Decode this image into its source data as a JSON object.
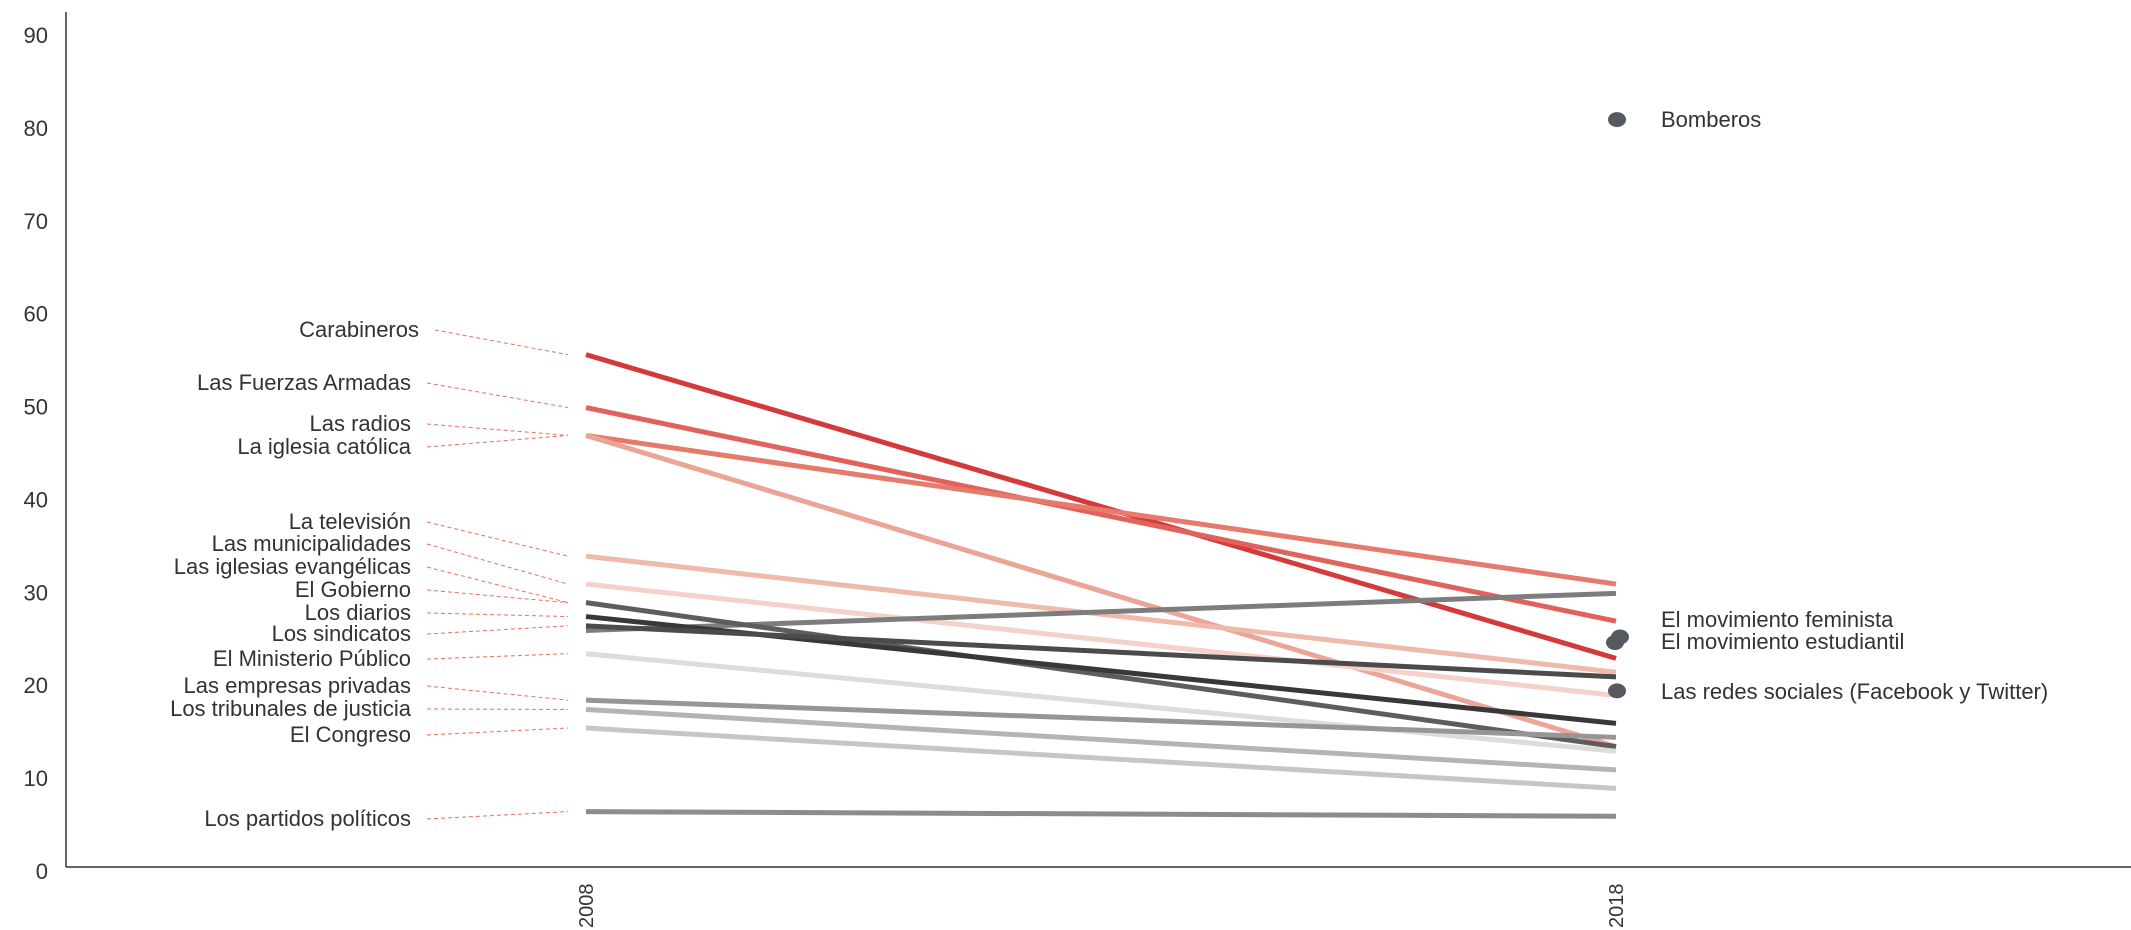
{
  "chart_data": {
    "type": "line",
    "x": [
      "2008",
      "2018"
    ],
    "ylim": [
      0,
      90
    ],
    "yticks": [
      0,
      10,
      20,
      30,
      40,
      50,
      60,
      70,
      80,
      90
    ],
    "grid": false,
    "leader_color": "#e8705e",
    "series": [
      {
        "name": "Carabineros",
        "values": [
          55.7,
          23.0
        ],
        "color": "#d43a3a"
      },
      {
        "name": "Las Fuerzas Armadas",
        "values": [
          50.0,
          27.0
        ],
        "color": "#e0625a"
      },
      {
        "name": "Las radios",
        "values": [
          47.0,
          31.0
        ],
        "color": "#e47b6b"
      },
      {
        "name": "La iglesia católica",
        "values": [
          47.0,
          13.5
        ],
        "color": "#eba596"
      },
      {
        "name": "La televisión",
        "values": [
          34.0,
          21.5
        ],
        "color": "#efb9ac"
      },
      {
        "name": "Las municipalidades",
        "values": [
          31.0,
          19.0
        ],
        "color": "#f5d1c9"
      },
      {
        "name": "Las iglesias evangélicas",
        "values": [
          26.0,
          30.0
        ],
        "color": "#7d7d7d"
      },
      {
        "name": "El Gobierno",
        "values": [
          29.0,
          13.5
        ],
        "color": "#5d5d5d"
      },
      {
        "name": "Los diarios",
        "values": [
          27.5,
          16.0
        ],
        "color": "#383838"
      },
      {
        "name": "Los sindicatos",
        "values": [
          26.5,
          21.0
        ],
        "color": "#4b4b4b"
      },
      {
        "name": "El Ministerio Público",
        "values": [
          23.5,
          13.0
        ],
        "color": "#dcdcdc"
      },
      {
        "name": "Las empresas privadas",
        "values": [
          18.5,
          14.5
        ],
        "color": "#969696"
      },
      {
        "name": "Los tribunales de justicia",
        "values": [
          17.5,
          11.0
        ],
        "color": "#b4b4b4"
      },
      {
        "name": "El Congreso",
        "values": [
          15.5,
          9.0
        ],
        "color": "#c6c6c6"
      },
      {
        "name": "Los partidos políticos",
        "values": [
          6.5,
          6.0
        ],
        "color": "#8c8c8c"
      }
    ],
    "points_2018": [
      {
        "name": "Bomberos",
        "value": 81.0,
        "color": "#555a60"
      },
      {
        "name": "El movimiento feminista",
        "value": 25.3,
        "color": "#555a60"
      },
      {
        "name": "El movimiento estudiantil",
        "value": 24.7,
        "color": "#555a60"
      },
      {
        "name": "Las redes sociales (Facebook y Twitter)",
        "value": 19.5,
        "color": "#555a60"
      }
    ]
  }
}
